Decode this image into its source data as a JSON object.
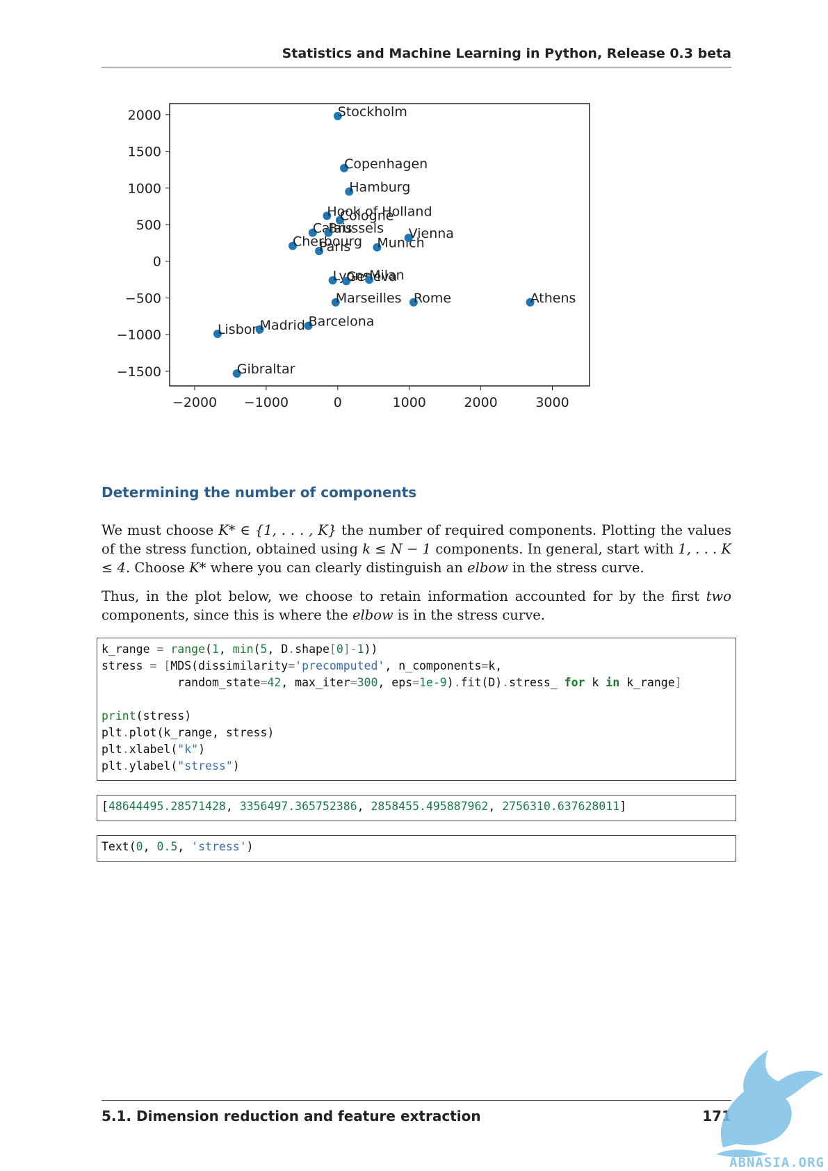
{
  "header": {
    "running_title": "Statistics and Machine Learning in Python, Release 0.3 beta"
  },
  "chart_data": {
    "type": "scatter",
    "title": "",
    "xlabel": "",
    "ylabel": "",
    "xlim": [
      -2350,
      3520
    ],
    "ylim": [
      -1700,
      2150
    ],
    "xticks": [
      -2000,
      -1000,
      0,
      1000,
      2000,
      3000
    ],
    "xtick_labels": [
      "−2000",
      "−1000",
      "0",
      "1000",
      "2000",
      "3000"
    ],
    "yticks": [
      2000,
      1500,
      1000,
      500,
      0,
      -500,
      -1000,
      -1500
    ],
    "ytick_labels": [
      "2000",
      "1500",
      "1000",
      "500",
      "0",
      "−500",
      "−1000",
      "−1500"
    ],
    "grid": false,
    "marker_color": "#1f77b4",
    "points": [
      {
        "label": "Stockholm",
        "x": 0,
        "y": 1980
      },
      {
        "label": "Copenhagen",
        "x": 90,
        "y": 1270
      },
      {
        "label": "Hamburg",
        "x": 160,
        "y": 950
      },
      {
        "label": "Hook of Holland",
        "x": -150,
        "y": 620
      },
      {
        "label": "Cologne",
        "x": 30,
        "y": 560
      },
      {
        "label": "Calais",
        "x": -350,
        "y": 390
      },
      {
        "label": "Brussels",
        "x": -130,
        "y": 390
      },
      {
        "label": "Cherbourg",
        "x": -630,
        "y": 210
      },
      {
        "label": "Paris",
        "x": -260,
        "y": 140
      },
      {
        "label": "Munich",
        "x": 550,
        "y": 190
      },
      {
        "label": "Vienna",
        "x": 990,
        "y": 320
      },
      {
        "label": "Lyons",
        "x": -70,
        "y": -260
      },
      {
        "label": "Geneva",
        "x": 120,
        "y": -270
      },
      {
        "label": "Milan",
        "x": 440,
        "y": -250
      },
      {
        "label": "Marseilles",
        "x": -30,
        "y": -560
      },
      {
        "label": "Rome",
        "x": 1060,
        "y": -560
      },
      {
        "label": "Athens",
        "x": 2690,
        "y": -560
      },
      {
        "label": "Lisbon",
        "x": -1680,
        "y": -990
      },
      {
        "label": "Madrid",
        "x": -1090,
        "y": -930
      },
      {
        "label": "Barcelona",
        "x": -410,
        "y": -880
      },
      {
        "label": "Gibraltar",
        "x": -1410,
        "y": -1530
      }
    ]
  },
  "section": {
    "heading": "Determining the number of components"
  },
  "paragraphs": {
    "p1_a": "We must choose ",
    "p1_b": " the number of required components. Plotting the values of the stress function, obtained using ",
    "p1_c": " components. In general, start with ",
    "p1_d": ". Choose ",
    "p1_e": " where you can clearly distinguish an ",
    "p1_elbow": "elbow",
    "p1_f": " in the stress curve.",
    "p2_a": "Thus, in the plot below, we choose to retain information accounted for by the first ",
    "p2_two": "two",
    "p2_b": " components, since this is where the ",
    "p2_elbow": "elbow",
    "p2_c": " is in the stress curve."
  },
  "math": {
    "m1": "K* ∈ {1, . . . , K}",
    "m2": "k ≤ N − 1",
    "m3": "1, . . . K ≤ 4",
    "m4": "K*"
  },
  "code": {
    "lines": [
      "k_range = range(1, min(5, D.shape[0]-1))",
      "stress = [MDS(dissimilarity='precomputed', n_components=k,",
      "           random_state=42, max_iter=300, eps=1e-9).fit(D).stress_ for k in k_range]",
      "",
      "print(stress)",
      "plt.plot(k_range, stress)",
      "plt.xlabel(\"k\")",
      "plt.ylabel(\"stress\")"
    ]
  },
  "outputs": {
    "stress_values": [
      "48644495.28571428",
      "3356497.365752386",
      "2858455.495887962",
      "2756310.637628011"
    ],
    "text_repr": "Text(0, 0.5, 'stress')"
  },
  "footer": {
    "section": "5.1.  Dimension reduction and feature extraction",
    "page_number": "171"
  },
  "watermark": {
    "text": "ABNASIA.ORG",
    "color": "#6fb6e0"
  }
}
